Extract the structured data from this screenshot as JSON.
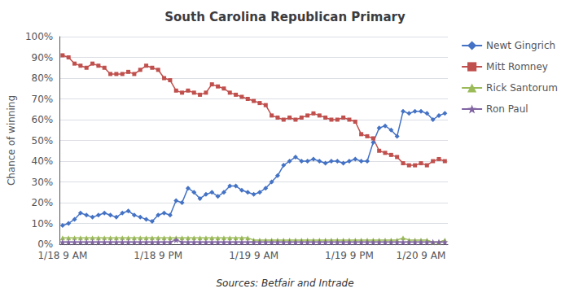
{
  "chart_data": {
    "type": "line",
    "title": "South Carolina Republican Primary",
    "ylabel": "Chance of winning",
    "annotations": [
      "Sources: Betfair and Intrade"
    ],
    "categories": [
      "1/18 9 AM",
      null,
      null,
      null,
      null,
      null,
      null,
      null,
      null,
      null,
      null,
      null,
      null,
      null,
      null,
      null,
      "1/18 9 PM",
      null,
      null,
      null,
      null,
      null,
      null,
      null,
      null,
      null,
      null,
      null,
      null,
      null,
      null,
      null,
      "1/19 9 AM",
      null,
      null,
      null,
      null,
      null,
      null,
      null,
      null,
      null,
      null,
      null,
      null,
      null,
      null,
      null,
      "1/19 9 PM",
      null,
      null,
      null,
      null,
      null,
      null,
      null,
      null,
      null,
      null,
      null,
      "1/20 9 AM",
      null,
      null,
      null,
      null
    ],
    "ylim": [
      0,
      1.0
    ],
    "yticks": [
      {
        "value": 0,
        "label": "0%"
      },
      {
        "value": 0.1,
        "label": "10%"
      },
      {
        "value": 0.2,
        "label": "20%"
      },
      {
        "value": 0.3,
        "label": "30%"
      },
      {
        "value": 0.4,
        "label": "40%"
      },
      {
        "value": 0.5,
        "label": "50%"
      },
      {
        "value": 0.6,
        "label": "60%"
      },
      {
        "value": 0.7,
        "label": "70%"
      },
      {
        "value": 0.8,
        "label": "80%"
      },
      {
        "value": 0.9,
        "label": "90%"
      },
      {
        "value": 1.0,
        "label": "100%"
      }
    ],
    "grid": true,
    "legend": "right",
    "series": [
      {
        "name": "Newt Gingrich",
        "color": "#4472C4",
        "marker": "diamond",
        "values": [
          0.09,
          0.1,
          0.12,
          0.15,
          0.14,
          0.13,
          0.14,
          0.15,
          0.14,
          0.13,
          0.15,
          0.16,
          0.14,
          0.13,
          0.12,
          0.11,
          0.14,
          0.15,
          0.14,
          0.21,
          0.2,
          0.27,
          0.25,
          0.22,
          0.24,
          0.25,
          0.23,
          0.25,
          0.28,
          0.28,
          0.26,
          0.25,
          0.24,
          0.25,
          0.27,
          0.3,
          0.33,
          0.38,
          0.4,
          0.42,
          0.4,
          0.4,
          0.41,
          0.4,
          0.39,
          0.4,
          0.4,
          0.39,
          0.4,
          0.41,
          0.4,
          0.4,
          0.49,
          0.56,
          0.57,
          0.55,
          0.52,
          0.64,
          0.63,
          0.64,
          0.64,
          0.63,
          0.6,
          0.62,
          0.63
        ]
      },
      {
        "name": "Mitt Romney",
        "color": "#C0504D",
        "marker": "square",
        "values": [
          0.91,
          0.9,
          0.87,
          0.86,
          0.85,
          0.87,
          0.86,
          0.85,
          0.82,
          0.82,
          0.82,
          0.83,
          0.82,
          0.84,
          0.86,
          0.85,
          0.84,
          0.8,
          0.79,
          0.74,
          0.73,
          0.74,
          0.73,
          0.72,
          0.73,
          0.77,
          0.76,
          0.75,
          0.73,
          0.72,
          0.71,
          0.7,
          0.69,
          0.68,
          0.67,
          0.62,
          0.61,
          0.6,
          0.61,
          0.6,
          0.61,
          0.62,
          0.63,
          0.62,
          0.61,
          0.6,
          0.6,
          0.61,
          0.6,
          0.59,
          0.53,
          0.52,
          0.51,
          0.45,
          0.44,
          0.43,
          0.42,
          0.39,
          0.38,
          0.38,
          0.39,
          0.38,
          0.4,
          0.41,
          0.4
        ]
      },
      {
        "name": "Rick Santorum",
        "color": "#9BBB59",
        "marker": "triangle",
        "values": [
          0.03,
          0.03,
          0.03,
          0.03,
          0.03,
          0.03,
          0.03,
          0.03,
          0.03,
          0.03,
          0.03,
          0.03,
          0.03,
          0.03,
          0.03,
          0.03,
          0.03,
          0.03,
          0.03,
          0.03,
          0.03,
          0.03,
          0.03,
          0.03,
          0.03,
          0.03,
          0.03,
          0.03,
          0.03,
          0.03,
          0.03,
          0.03,
          0.02,
          0.02,
          0.02,
          0.02,
          0.02,
          0.02,
          0.02,
          0.02,
          0.02,
          0.02,
          0.02,
          0.02,
          0.02,
          0.02,
          0.02,
          0.02,
          0.02,
          0.02,
          0.02,
          0.02,
          0.02,
          0.02,
          0.02,
          0.02,
          0.02,
          0.03,
          0.02,
          0.02,
          0.02,
          0.02,
          0.01,
          0.01,
          0.02
        ]
      },
      {
        "name": "Ron Paul",
        "color": "#8064A2",
        "marker": "star",
        "values": [
          0.01,
          0.01,
          0.01,
          0.01,
          0.01,
          0.01,
          0.01,
          0.01,
          0.01,
          0.01,
          0.01,
          0.01,
          0.01,
          0.01,
          0.01,
          0.01,
          0.01,
          0.01,
          0.01,
          0.02,
          0.01,
          0.01,
          0.01,
          0.01,
          0.01,
          0.01,
          0.01,
          0.01,
          0.01,
          0.01,
          0.01,
          0.01,
          0.01,
          0.01,
          0.01,
          0.01,
          0.01,
          0.01,
          0.01,
          0.01,
          0.01,
          0.01,
          0.01,
          0.01,
          0.01,
          0.01,
          0.01,
          0.01,
          0.01,
          0.01,
          0.01,
          0.01,
          0.01,
          0.01,
          0.01,
          0.01,
          0.01,
          0.01,
          0.01,
          0.01,
          0.01,
          0.01,
          0.01,
          0.01,
          0.01
        ]
      }
    ]
  }
}
